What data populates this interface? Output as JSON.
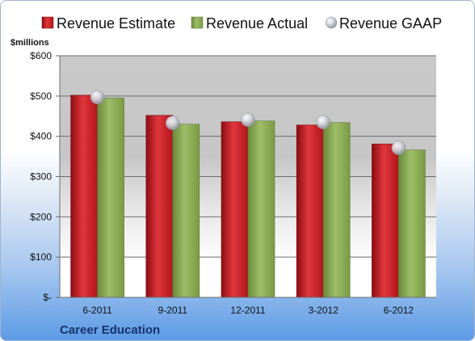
{
  "chart_data": {
    "type": "bar",
    "categories": [
      "6-2011",
      "9-2011",
      "12-2011",
      "3-2012",
      "6-2012"
    ],
    "series": [
      {
        "name": "Revenue Estimate",
        "kind": "bar",
        "color": "#d9262c",
        "values": [
          502,
          452,
          436,
          428,
          381
        ]
      },
      {
        "name": "Revenue Actual",
        "kind": "bar",
        "color": "#8cad58",
        "values": [
          495,
          430,
          438,
          434,
          366
        ]
      },
      {
        "name": "Revenue GAAP",
        "kind": "marker",
        "color": "#c8ccd4",
        "values": [
          497,
          433,
          441,
          435,
          371
        ]
      }
    ],
    "y_unit_label": "$millions",
    "y_ticks": [
      "$600",
      "$500",
      "$400",
      "$300",
      "$200",
      "$100",
      "$-"
    ],
    "ylim": [
      0,
      600
    ],
    "grid": true,
    "legend_position": "top",
    "company": "Career Education"
  }
}
